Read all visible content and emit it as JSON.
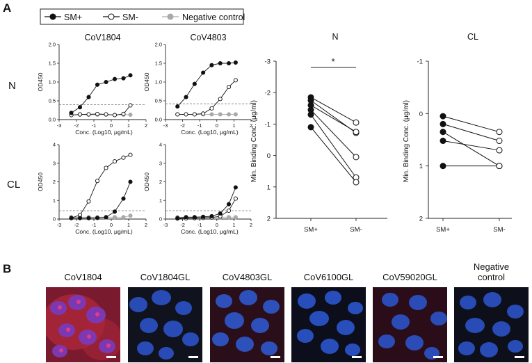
{
  "panel_labels": {
    "a": "A",
    "b": "B"
  },
  "legend": {
    "items": [
      {
        "label": "SM+",
        "color": "#111111",
        "fill": "#111111"
      },
      {
        "label": "SM-",
        "color": "#111111",
        "fill": "#ffffff"
      },
      {
        "label": "Negative control",
        "color": "#aaaaaa",
        "fill": "#aaaaaa"
      }
    ]
  },
  "row_labels": [
    "N",
    "CL"
  ],
  "chart_data": [
    {
      "type": "line",
      "title": "CoV1804",
      "antigen": "N",
      "xlabel": "Conc. (Log10, μg/mL)",
      "ylabel": "OD450",
      "xlim": [
        -3,
        2
      ],
      "ylim": [
        0,
        2.0
      ],
      "xticks": [
        "-3",
        "-2",
        "-1",
        "0",
        "1",
        "2"
      ],
      "yticks": [
        "0.0",
        "0.5",
        "1.0",
        "1.5",
        "2.0"
      ],
      "cutoff": 0.4,
      "series": [
        {
          "name": "SM+",
          "x": [
            -2.3,
            -1.8,
            -1.3,
            -0.8,
            -0.3,
            0.2,
            0.7,
            1.1
          ],
          "y": [
            0.18,
            0.33,
            0.6,
            0.93,
            1.0,
            1.08,
            1.1,
            1.18
          ]
        },
        {
          "name": "SM-",
          "x": [
            -2.3,
            -1.8,
            -1.3,
            -0.8,
            -0.3,
            0.2,
            0.7,
            1.1
          ],
          "y": [
            0.12,
            0.14,
            0.14,
            0.15,
            0.14,
            0.12,
            0.15,
            0.38
          ]
        },
        {
          "name": "Negative control",
          "x": [
            -2.3,
            -1.8,
            -1.3,
            -0.8,
            -0.3,
            0.2,
            0.7,
            1.1
          ],
          "y": [
            0.13,
            0.13,
            0.13,
            0.13,
            0.13,
            0.13,
            0.13,
            0.13
          ]
        }
      ]
    },
    {
      "type": "line",
      "title": "CoV4803",
      "antigen": "N",
      "xlabel": "Conc. (Log10, μg/mL)",
      "ylabel": "OD450",
      "xlim": [
        -3,
        2
      ],
      "ylim": [
        0,
        2.0
      ],
      "xticks": [
        "-3",
        "-2",
        "-1",
        "0",
        "1",
        "2"
      ],
      "yticks": [
        "0.0",
        "0.5",
        "1.0",
        "1.5",
        "2.0"
      ],
      "cutoff": 0.42,
      "series": [
        {
          "name": "SM+",
          "x": [
            -2.3,
            -1.8,
            -1.3,
            -0.8,
            -0.3,
            0.2,
            0.7,
            1.1
          ],
          "y": [
            0.35,
            0.6,
            0.95,
            1.25,
            1.45,
            1.5,
            1.5,
            1.52
          ]
        },
        {
          "name": "SM-",
          "x": [
            -2.3,
            -1.8,
            -1.3,
            -0.8,
            -0.3,
            0.2,
            0.7,
            1.1
          ],
          "y": [
            0.14,
            0.14,
            0.14,
            0.16,
            0.3,
            0.55,
            0.87,
            1.05
          ]
        },
        {
          "name": "Negative control",
          "x": [
            -2.3,
            -1.8,
            -1.3,
            -0.8,
            -0.3,
            0.2,
            0.7,
            1.1
          ],
          "y": [
            0.14,
            0.14,
            0.14,
            0.14,
            0.14,
            0.14,
            0.14,
            0.14
          ]
        }
      ]
    },
    {
      "type": "line",
      "title": "",
      "antigen": "CL",
      "xlabel": "Conc. (Log10, μg/mL)",
      "ylabel": "OD450",
      "xlim": [
        -3,
        2
      ],
      "ylim": [
        0,
        4
      ],
      "xticks": [
        "-3",
        "-2",
        "-1",
        "0",
        "1",
        "2"
      ],
      "yticks": [
        "0",
        "1",
        "2",
        "3",
        "4"
      ],
      "cutoff": 0.45,
      "series": [
        {
          "name": "SM+",
          "x": [
            -2.3,
            -1.8,
            -1.3,
            -0.8,
            -0.3,
            0.2,
            0.7,
            1.1
          ],
          "y": [
            0.05,
            0.05,
            0.05,
            0.06,
            0.1,
            0.4,
            1.1,
            2.0
          ]
        },
        {
          "name": "SM-",
          "x": [
            -2.3,
            -1.8,
            -1.3,
            -0.8,
            -0.3,
            0.2,
            0.7,
            1.1
          ],
          "y": [
            0.06,
            0.22,
            0.95,
            2.05,
            2.75,
            3.1,
            3.3,
            3.45
          ]
        },
        {
          "name": "Negative control",
          "x": [
            -2.3,
            -1.8,
            -1.3,
            -0.8,
            -0.3,
            0.2,
            0.7,
            1.1
          ],
          "y": [
            0.1,
            0.1,
            0.1,
            0.1,
            0.1,
            0.1,
            0.1,
            0.18
          ]
        }
      ]
    },
    {
      "type": "line",
      "title": "",
      "antigen": "CL",
      "xlabel": "Conc. (Log10, μg/mL)",
      "ylabel": "OD450",
      "xlim": [
        -3,
        2
      ],
      "ylim": [
        0,
        4
      ],
      "xticks": [
        "-3",
        "-2",
        "-1",
        "0",
        "1",
        "2"
      ],
      "yticks": [
        "0",
        "1",
        "2",
        "3",
        "4"
      ],
      "cutoff": 0.45,
      "series": [
        {
          "name": "SM+",
          "x": [
            -2.3,
            -1.8,
            -1.3,
            -0.8,
            -0.3,
            0.2,
            0.7,
            1.1
          ],
          "y": [
            0.05,
            0.1,
            0.1,
            0.12,
            0.15,
            0.3,
            0.8,
            1.7
          ]
        },
        {
          "name": "SM-",
          "x": [
            -2.3,
            -1.8,
            -1.3,
            -0.8,
            -0.3,
            0.2,
            0.7,
            1.1
          ],
          "y": [
            0.03,
            0.04,
            0.05,
            0.06,
            0.08,
            0.15,
            0.45,
            1.1
          ]
        },
        {
          "name": "Negative control",
          "x": [
            -2.3,
            -1.8,
            -1.3,
            -0.8,
            -0.3,
            0.2,
            0.7,
            1.1
          ],
          "y": [
            0.1,
            0.1,
            0.1,
            0.1,
            0.1,
            0.1,
            0.1,
            0.1
          ]
        }
      ]
    },
    {
      "type": "scatter",
      "title": "N",
      "ylabel": "Min. Binding Conc. (μg/ml)",
      "categories": [
        "SM+",
        "SM-"
      ],
      "ylim": [
        -3,
        2
      ],
      "y_inverted": true,
      "yticks": [
        "-3",
        "-2",
        "-1",
        "0",
        "1",
        "2"
      ],
      "significance": "*",
      "pairs": [
        [
          -1.85,
          -1.05
        ],
        [
          -1.75,
          -0.72
        ],
        [
          -1.6,
          -0.75
        ],
        [
          -1.45,
          0.05
        ],
        [
          -1.3,
          0.7
        ],
        [
          -0.9,
          0.85
        ]
      ]
    },
    {
      "type": "scatter",
      "title": "CL",
      "ylabel": "Min. Binding Conc. (μg/ml)",
      "categories": [
        "SM+",
        "SM-"
      ],
      "ylim": [
        -1,
        2
      ],
      "y_inverted": true,
      "yticks": [
        "-1",
        "0",
        "1",
        "2"
      ],
      "pairs": [
        [
          0.05,
          0.35
        ],
        [
          0.2,
          0.52
        ],
        [
          0.35,
          1.0
        ],
        [
          0.52,
          0.7
        ],
        [
          1.0,
          1.0
        ]
      ]
    }
  ],
  "micrographs": [
    {
      "label": "CoV1804",
      "bg": "#7a1a2e",
      "nuclei": "#7a3ab8",
      "spots": true
    },
    {
      "label": "CoV1804GL",
      "bg": "#10121e",
      "nuclei": "#2a4fbf",
      "spots": false
    },
    {
      "label": "CoV4803GL",
      "bg": "#2a0f1a",
      "nuclei": "#2d54c4",
      "spots": false
    },
    {
      "label": "CoV6100GL",
      "bg": "#0c0e1c",
      "nuclei": "#2a52c4",
      "spots": false
    },
    {
      "label": "CoV59020GL",
      "bg": "#2a0d18",
      "nuclei": "#2b50c0",
      "spots": false
    },
    {
      "label": "Negative\ncontrol",
      "bg": "#0d0f1a",
      "nuclei": "#2a4fbe",
      "spots": false
    }
  ]
}
